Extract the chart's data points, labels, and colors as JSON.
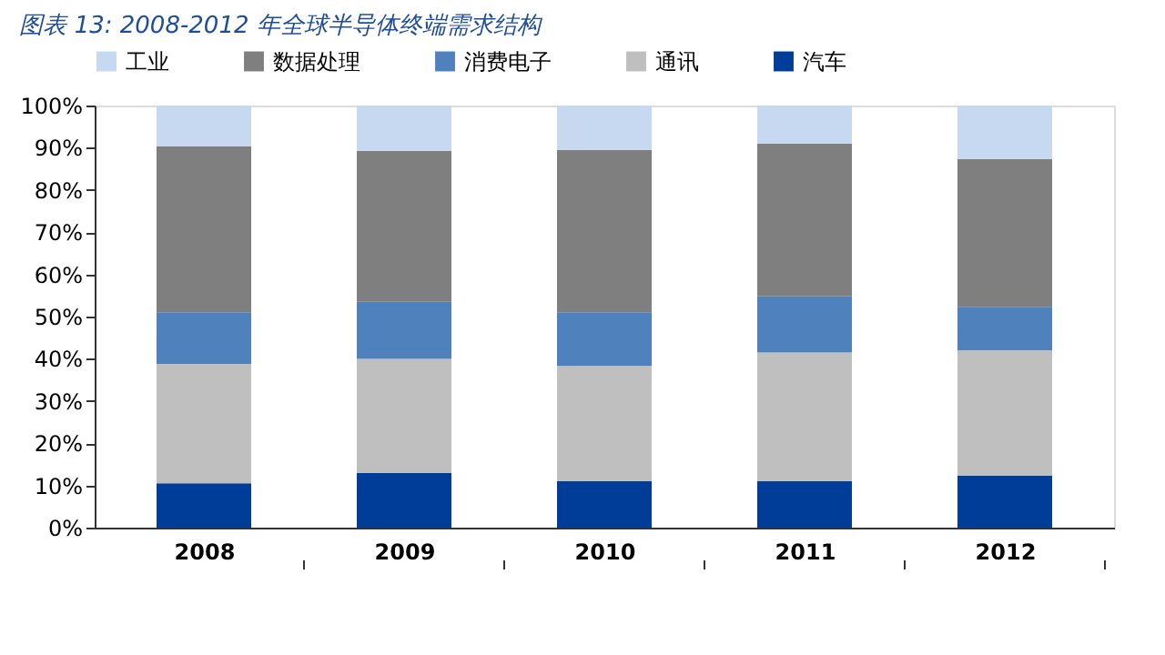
{
  "chart_data": {
    "type": "bar",
    "title": "图表 13:  2008-2012 年全球半导体终端需求结构",
    "categories": [
      "2008",
      "2009",
      "2010",
      "2011",
      "2012"
    ],
    "stacked": true,
    "series": [
      {
        "name": "汽车",
        "color": "#003d99",
        "values": [
          10.5,
          13,
          11,
          11,
          12.3
        ]
      },
      {
        "name": "通讯",
        "color": "#bfbfbf",
        "values": [
          28.3,
          27,
          27.3,
          30.5,
          29.7
        ]
      },
      {
        "name": "消费电子",
        "color": "#4f81bd",
        "values": [
          12.2,
          13.5,
          12.7,
          13.3,
          10.3
        ]
      },
      {
        "name": "数据处理",
        "color": "#7f7f7f",
        "values": [
          39.3,
          35.8,
          38.5,
          36.2,
          35
        ]
      },
      {
        "name": "工业",
        "color": "#c6d9f0",
        "values": [
          9.7,
          10.7,
          10.5,
          9,
          12.7
        ]
      }
    ],
    "ylim": [
      0,
      100
    ],
    "yticks": [
      {
        "value": 0,
        "label": "0%"
      },
      {
        "value": 10,
        "label": "10%"
      },
      {
        "value": 20,
        "label": "20%"
      },
      {
        "value": 30,
        "label": "30%"
      },
      {
        "value": 40,
        "label": "40%"
      },
      {
        "value": 50,
        "label": "50%"
      },
      {
        "value": 60,
        "label": "60%"
      },
      {
        "value": 70,
        "label": "70%"
      },
      {
        "value": 80,
        "label": "80%"
      },
      {
        "value": 90,
        "label": "90%"
      },
      {
        "value": 100,
        "label": "100%"
      }
    ],
    "legend": "top",
    "grid": false
  }
}
